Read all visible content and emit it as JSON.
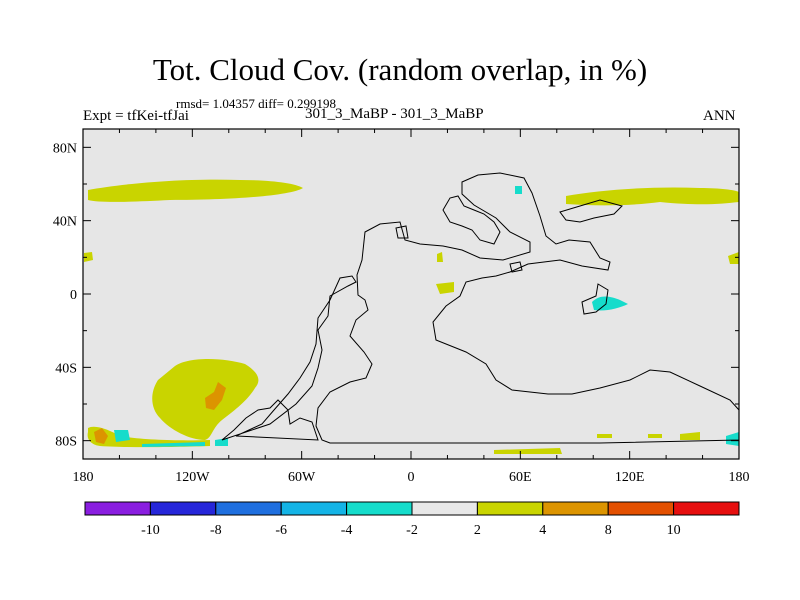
{
  "title": "Tot. Cloud Cov. (random overlap, in %)",
  "stats_line": "rmsd= 1.04357  diff= 0.299198",
  "left_label": "Expt = tfKei-tfJai",
  "center_label": "301_3_MaBP - 301_3_MaBP",
  "right_label": "ANN",
  "x_ticks": [
    "180",
    "120W",
    "60W",
    "0",
    "60E",
    "120E",
    "180"
  ],
  "y_ticks": [
    "80N",
    "40N",
    "0",
    "40S",
    "80S"
  ],
  "colorbar_labels": [
    "-10",
    "-8",
    "-6",
    "-4",
    "-2",
    "2",
    "4",
    "8",
    "10"
  ],
  "colorbar_colors": [
    "#8a1ee0",
    "#2626d9",
    "#1f6fdf",
    "#14b4e6",
    "#16dccb",
    "#e8e8e8",
    "#c9d400",
    "#dc9400",
    "#e35000",
    "#e60f0f"
  ],
  "map_background": "#e6e6e6",
  "chart_data": {
    "type": "map",
    "projection": "cylindrical-equidistant",
    "xlim": [
      -180,
      180
    ],
    "ylim": [
      -90,
      90
    ],
    "field": "Tot. Cloud Cov. difference (%)",
    "levels": [
      -10,
      -8,
      -6,
      -4,
      -2,
      2,
      4,
      8,
      10
    ]
  }
}
